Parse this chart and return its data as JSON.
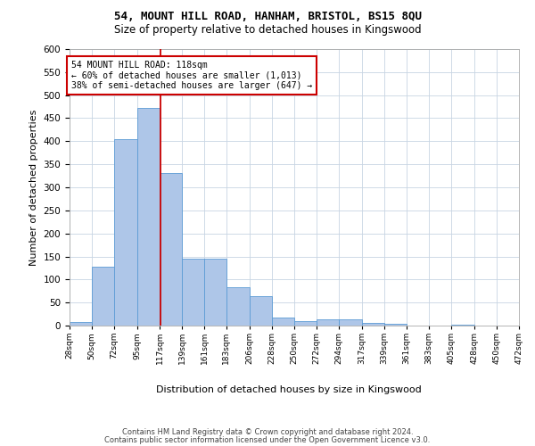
{
  "title": "54, MOUNT HILL ROAD, HANHAM, BRISTOL, BS15 8QU",
  "subtitle": "Size of property relative to detached houses in Kingswood",
  "xlabel": "Distribution of detached houses by size in Kingswood",
  "ylabel": "Number of detached properties",
  "bins": [
    28,
    50,
    72,
    95,
    117,
    139,
    161,
    183,
    206,
    228,
    250,
    272,
    294,
    317,
    339,
    361,
    383,
    405,
    428,
    450,
    472
  ],
  "counts": [
    7,
    127,
    405,
    472,
    330,
    145,
    145,
    83,
    64,
    18,
    10,
    14,
    14,
    6,
    3,
    0,
    0,
    1,
    0,
    0
  ],
  "property_size": 118,
  "bar_color": "#aec6e8",
  "bar_edge_color": "#5b9bd5",
  "vline_color": "#cc0000",
  "annotation_line1": "54 MOUNT HILL ROAD: 118sqm",
  "annotation_line2": "← 60% of detached houses are smaller (1,013)",
  "annotation_line3": "38% of semi-detached houses are larger (647) →",
  "annotation_box_color": "#ffffff",
  "annotation_box_edge_color": "#cc0000",
  "ylim": [
    0,
    600
  ],
  "yticks": [
    0,
    50,
    100,
    150,
    200,
    250,
    300,
    350,
    400,
    450,
    500,
    550,
    600
  ],
  "footer_line1": "Contains HM Land Registry data © Crown copyright and database right 2024.",
  "footer_line2": "Contains public sector information licensed under the Open Government Licence v3.0.",
  "bg_color": "#ffffff",
  "grid_color": "#c8d4e3"
}
